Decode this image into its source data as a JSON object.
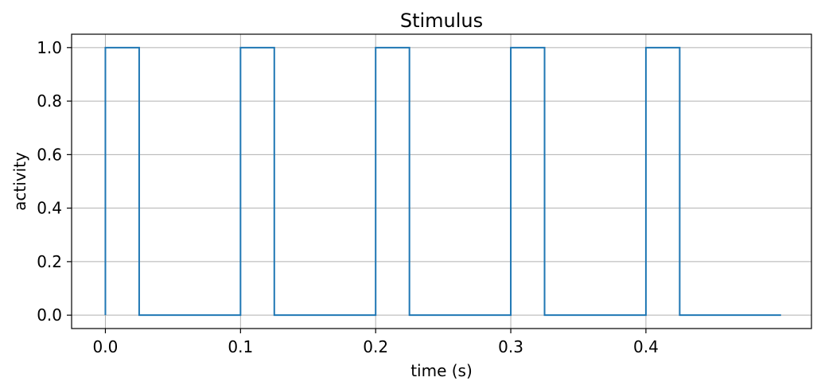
{
  "chart_data": {
    "type": "line",
    "title": "Stimulus",
    "xlabel": "time (s)",
    "ylabel": "activity",
    "xlim": [
      -0.025,
      0.5225
    ],
    "ylim": [
      -0.05,
      1.05
    ],
    "xticks": [
      "0.0",
      "0.1",
      "0.2",
      "0.3",
      "0.4"
    ],
    "yticks": [
      "0.0",
      "0.2",
      "0.4",
      "0.6",
      "0.8",
      "1.0"
    ],
    "grid": true,
    "line_color": "#1f77b4",
    "series": [
      {
        "x": [
          0.0,
          0.0,
          0.025,
          0.025,
          0.1,
          0.1,
          0.125,
          0.125,
          0.2,
          0.2,
          0.225,
          0.225,
          0.3,
          0.3,
          0.325,
          0.325,
          0.4,
          0.4,
          0.425,
          0.425,
          0.5
        ],
        "y": [
          0,
          1,
          1,
          0,
          0,
          1,
          1,
          0,
          0,
          1,
          1,
          0,
          0,
          1,
          1,
          0,
          0,
          1,
          1,
          0,
          0
        ]
      }
    ]
  }
}
